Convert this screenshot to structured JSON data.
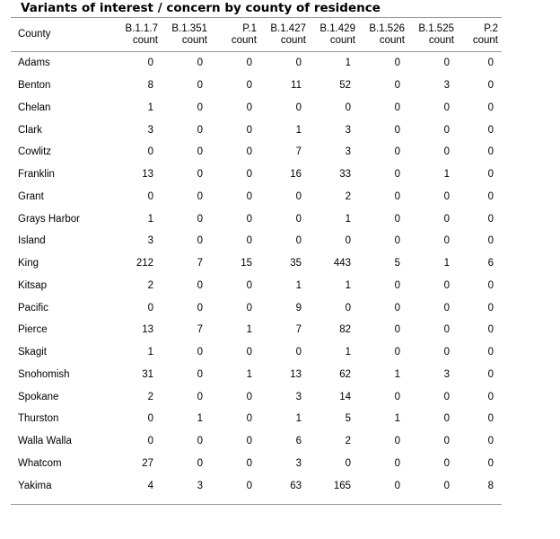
{
  "title": "Variants of interest / concern by county of residence",
  "table": {
    "county_header": "County",
    "columns": [
      {
        "line1": "B.1.1.7",
        "line2": "count"
      },
      {
        "line1": "B.1.351",
        "line2": "count"
      },
      {
        "line1": "P.1",
        "line2": "count"
      },
      {
        "line1": "B.1.427",
        "line2": "count"
      },
      {
        "line1": "B.1.429",
        "line2": "count"
      },
      {
        "line1": "B.1.526",
        "line2": "count"
      },
      {
        "line1": "B.1.525",
        "line2": "count"
      },
      {
        "line1": "P.2",
        "line2": "count"
      }
    ],
    "rows": [
      {
        "county": "Adams",
        "values": [
          "0",
          "0",
          "0",
          "0",
          "1",
          "0",
          "0",
          "0"
        ]
      },
      {
        "county": "Benton",
        "values": [
          "8",
          "0",
          "0",
          "11",
          "52",
          "0",
          "3",
          "0"
        ]
      },
      {
        "county": "Chelan",
        "values": [
          "1",
          "0",
          "0",
          "0",
          "0",
          "0",
          "0",
          "0"
        ]
      },
      {
        "county": "Clark",
        "values": [
          "3",
          "0",
          "0",
          "1",
          "3",
          "0",
          "0",
          "0"
        ]
      },
      {
        "county": "Cowlitz",
        "values": [
          "0",
          "0",
          "0",
          "7",
          "3",
          "0",
          "0",
          "0"
        ]
      },
      {
        "county": "Franklin",
        "values": [
          "13",
          "0",
          "0",
          "16",
          "33",
          "0",
          "1",
          "0"
        ]
      },
      {
        "county": "Grant",
        "values": [
          "0",
          "0",
          "0",
          "0",
          "2",
          "0",
          "0",
          "0"
        ]
      },
      {
        "county": "Grays Harbor",
        "values": [
          "1",
          "0",
          "0",
          "0",
          "1",
          "0",
          "0",
          "0"
        ]
      },
      {
        "county": "Island",
        "values": [
          "3",
          "0",
          "0",
          "0",
          "0",
          "0",
          "0",
          "0"
        ]
      },
      {
        "county": "King",
        "values": [
          "212",
          "7",
          "15",
          "35",
          "443",
          "5",
          "1",
          "6"
        ]
      },
      {
        "county": "Kitsap",
        "values": [
          "2",
          "0",
          "0",
          "1",
          "1",
          "0",
          "0",
          "0"
        ]
      },
      {
        "county": "Pacific",
        "values": [
          "0",
          "0",
          "0",
          "9",
          "0",
          "0",
          "0",
          "0"
        ]
      },
      {
        "county": "Pierce",
        "values": [
          "13",
          "7",
          "1",
          "7",
          "82",
          "0",
          "0",
          "0"
        ]
      },
      {
        "county": "Skagit",
        "values": [
          "1",
          "0",
          "0",
          "0",
          "1",
          "0",
          "0",
          "0"
        ]
      },
      {
        "county": "Snohomish",
        "values": [
          "31",
          "0",
          "1",
          "13",
          "62",
          "1",
          "3",
          "0"
        ]
      },
      {
        "county": "Spokane",
        "values": [
          "2",
          "0",
          "0",
          "3",
          "14",
          "0",
          "0",
          "0"
        ]
      },
      {
        "county": "Thurston",
        "values": [
          "0",
          "1",
          "0",
          "1",
          "5",
          "1",
          "0",
          "0"
        ]
      },
      {
        "county": "Walla Walla",
        "values": [
          "0",
          "0",
          "0",
          "6",
          "2",
          "0",
          "0",
          "0"
        ]
      },
      {
        "county": "Whatcom",
        "values": [
          "27",
          "0",
          "0",
          "3",
          "0",
          "0",
          "0",
          "0"
        ]
      },
      {
        "county": "Yakima",
        "values": [
          "4",
          "3",
          "0",
          "63",
          "165",
          "0",
          "0",
          "8"
        ]
      }
    ]
  }
}
